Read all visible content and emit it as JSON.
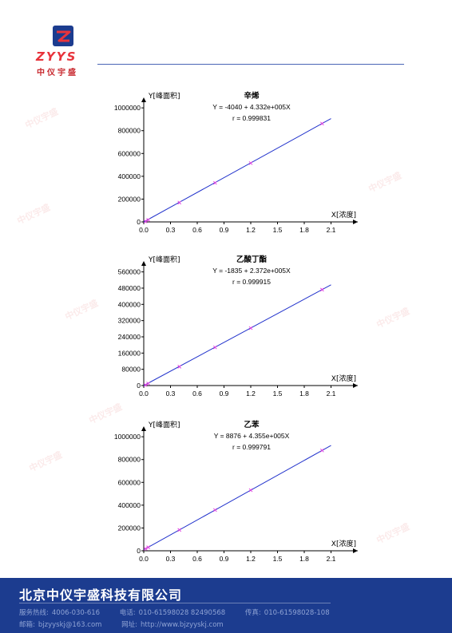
{
  "header": {
    "logo_text": "ZYYS",
    "logo_cn": "中仪宇盛",
    "logo_name": "zyys-logo",
    "watermark_text": "中仪宇盛"
  },
  "colors": {
    "line": "#2233cc",
    "marker": "#e040e0",
    "footer_bg": "#1c3c8f",
    "header_line": "#4a66b6"
  },
  "chart_data": [
    {
      "type": "scatter",
      "title": "辛烯",
      "equation": "Y = -4040 + 4.332e+005X",
      "r": "r = 0.999831",
      "ylabel": "Y[峰面积]",
      "xlabel": "X[浓度]",
      "xticks": [
        "0.0",
        "0.3",
        "0.6",
        "0.9",
        "1.2",
        "1.5",
        "1.8",
        "2.1"
      ],
      "yticks": [
        "0",
        "200000",
        "400000",
        "600000",
        "800000",
        "1000000"
      ],
      "xlim": [
        0,
        2.4
      ],
      "ylim": [
        0,
        1050000
      ],
      "intercept": -4040,
      "slope": 433200,
      "line_x": [
        0,
        2.1
      ],
      "x": [
        0.02,
        0.05,
        0.4,
        0.8,
        1.2,
        2.0
      ],
      "y": [
        4600,
        17600,
        169200,
        342500,
        515800,
        862400
      ]
    },
    {
      "type": "scatter",
      "title": "乙酸丁酯",
      "equation": "Y = -1835 + 2.372e+005X",
      "r": "r = 0.999915",
      "ylabel": "Y[峰面积]",
      "xlabel": "X[浓度]",
      "xticks": [
        "0.0",
        "0.3",
        "0.6",
        "0.9",
        "1.2",
        "1.5",
        "1.8",
        "2.1"
      ],
      "yticks": [
        "0",
        "80000",
        "160000",
        "240000",
        "320000",
        "400000",
        "480000",
        "560000"
      ],
      "xlim": [
        0,
        2.4
      ],
      "ylim": [
        0,
        590000
      ],
      "intercept": -1835,
      "slope": 237200,
      "line_x": [
        0,
        2.1
      ],
      "x": [
        0.02,
        0.05,
        0.4,
        0.8,
        1.2,
        2.0
      ],
      "y": [
        2900,
        10000,
        93000,
        188000,
        283000,
        472600
      ]
    },
    {
      "type": "scatter",
      "title": "乙苯",
      "equation": "Y = 8876 + 4.355e+005X",
      "r": "r = 0.999791",
      "ylabel": "Y[峰面积]",
      "xlabel": "X[浓度]",
      "xticks": [
        "0.0",
        "0.3",
        "0.6",
        "0.9",
        "1.2",
        "1.5",
        "1.8",
        "2.1"
      ],
      "yticks": [
        "0",
        "200000",
        "400000",
        "600000",
        "800000",
        "1000000"
      ],
      "xlim": [
        0,
        2.4
      ],
      "ylim": [
        0,
        1050000
      ],
      "intercept": 8876,
      "slope": 435500,
      "line_x": [
        0,
        2.1
      ],
      "x": [
        0.02,
        0.05,
        0.4,
        0.8,
        1.2,
        2.0
      ],
      "y": [
        17600,
        30600,
        183100,
        357300,
        531500,
        879900
      ]
    }
  ],
  "footer": {
    "company": "北京中仪宇盛科技有限公司",
    "service_label": "服务热线:",
    "service_value": "4006-030-616",
    "phone_label": "电话:",
    "phone_value": "010-61598028 82490568",
    "fax_label": "传真:",
    "fax_value": "010-61598028-108",
    "email_label": "邮箱:",
    "email_value": "bjzyyskj@163.com",
    "web_label": "网址:",
    "web_value": "http://www.bjzyyskj.com"
  }
}
